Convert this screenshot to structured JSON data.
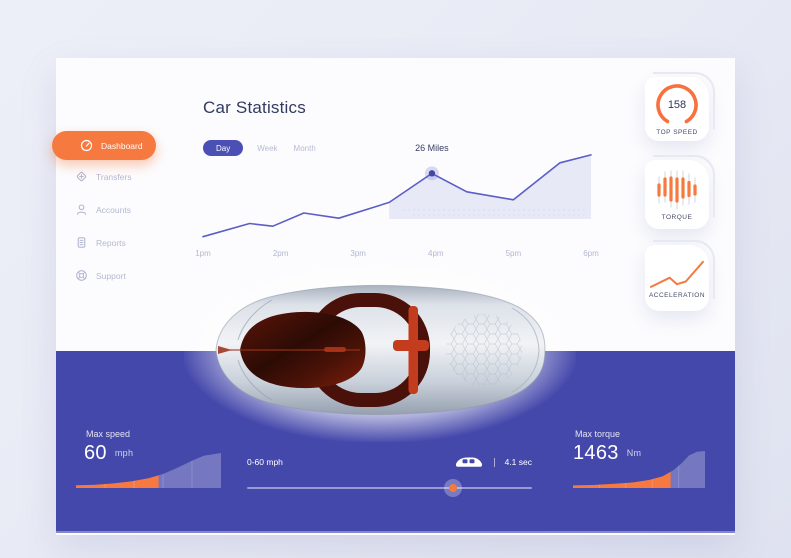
{
  "header": {
    "title": "Car Statistics"
  },
  "sidebar": {
    "items": [
      {
        "label": "Dashboard",
        "icon": "speedometer-icon",
        "active": true
      },
      {
        "label": "Transfers",
        "icon": "transfer-icon",
        "active": false
      },
      {
        "label": "Accounts",
        "icon": "user-icon",
        "active": false
      },
      {
        "label": "Reports",
        "icon": "report-icon",
        "active": false
      },
      {
        "label": "Support",
        "icon": "support-icon",
        "active": false
      }
    ]
  },
  "tabs": [
    {
      "label": "Day",
      "active": true
    },
    {
      "label": "Week",
      "active": false
    },
    {
      "label": "Month",
      "active": false
    }
  ],
  "chart_data": [
    {
      "id": "miles-by-hour",
      "type": "line",
      "title": "Distance driven by hour (Day view)",
      "x_hours": [
        1.0,
        1.6,
        1.9,
        2.3,
        2.75,
        3.4,
        3.95,
        4.4,
        5.0,
        5.6,
        6.0
      ],
      "values_miles": [
        2,
        7,
        6,
        11,
        9,
        15,
        26,
        19,
        16,
        30,
        33
      ],
      "tick_labels": [
        "1pm",
        "2pm",
        "3pm",
        "4pm",
        "5pm",
        "6pm"
      ],
      "xlim_hours": [
        1,
        6
      ],
      "ylim_miles": [
        0,
        36
      ],
      "annotation": {
        "text": "26 Miles",
        "x_hour": 3.95,
        "value_miles": 26
      },
      "line_color": "#5a5ec5",
      "area_color": "#e2e4f4",
      "area_from_x_hour": 3.4,
      "grid": false,
      "legend": "none"
    },
    {
      "id": "torque-widget",
      "type": "bar",
      "bars": [
        {
          "line_h": 26,
          "seg_h": 10,
          "offset": 1
        },
        {
          "line_h": 30,
          "seg_h": 16,
          "offset": -2
        },
        {
          "line_h": 36,
          "seg_h": 22,
          "offset": 0
        },
        {
          "line_h": 38,
          "seg_h": 22,
          "offset": 1
        },
        {
          "line_h": 34,
          "seg_h": 18,
          "offset": -1
        },
        {
          "line_h": 30,
          "seg_h": 13,
          "offset": 0
        },
        {
          "line_h": 24,
          "seg_h": 8,
          "offset": 1
        }
      ],
      "line_color": "#dcdfe8",
      "bar_color": "#f6793f"
    },
    {
      "id": "acceleration-widget",
      "type": "line",
      "points_pct": [
        [
          0,
          4
        ],
        [
          36,
          38
        ],
        [
          50,
          14
        ],
        [
          67,
          24
        ],
        [
          100,
          97
        ]
      ],
      "line_color": "#f6793f"
    },
    {
      "id": "max-speed-area",
      "type": "area",
      "points_pct": [
        [
          0,
          8
        ],
        [
          12,
          9
        ],
        [
          25,
          13
        ],
        [
          38,
          19
        ],
        [
          50,
          28
        ],
        [
          60,
          40
        ],
        [
          70,
          58
        ],
        [
          80,
          78
        ],
        [
          88,
          92
        ],
        [
          100,
          100
        ]
      ],
      "orange_until_pct": 57,
      "bar_color": "#f6793f",
      "rest_color": "rgba(255,255,255,0.26)"
    },
    {
      "id": "max-torque-area",
      "type": "area",
      "points_pct": [
        [
          0,
          7
        ],
        [
          15,
          8
        ],
        [
          30,
          11
        ],
        [
          45,
          15
        ],
        [
          58,
          22
        ],
        [
          68,
          32
        ],
        [
          76,
          48
        ],
        [
          82,
          66
        ],
        [
          88,
          88
        ],
        [
          94,
          98
        ],
        [
          100,
          100
        ]
      ],
      "orange_until_pct": 74,
      "bar_color": "#f6793f",
      "rest_color": "rgba(255,255,255,0.26)"
    }
  ],
  "widgets": {
    "top_speed": {
      "value": "158",
      "label": "TOP SPEED"
    },
    "torque": {
      "label": "TORQUE"
    },
    "acceleration": {
      "label": "ACCELERATION"
    }
  },
  "bottom": {
    "max_speed": {
      "label": "Max speed",
      "value": "60",
      "unit": "mph"
    },
    "slider": {
      "label": "0-60 mph",
      "value": "4.1 sec",
      "position_pct": 72.3,
      "icon": "car-toggle-icon"
    },
    "max_torque": {
      "label": "Max torque",
      "value": "1463",
      "unit": "Nm"
    }
  },
  "colors": {
    "page_bg": "#e7e9f4",
    "card_bg": "#fcfcfe",
    "panel_purple": "#4548ab",
    "panel_strip": "#8487cd",
    "accent_orange": "#f6793f",
    "tab_active_bg": "#4b50b4",
    "chart_line": "#5a5ec5",
    "chart_area": "#e2e4f4",
    "muted_text": "#b4b8d0",
    "dark_text": "#323a5f"
  }
}
